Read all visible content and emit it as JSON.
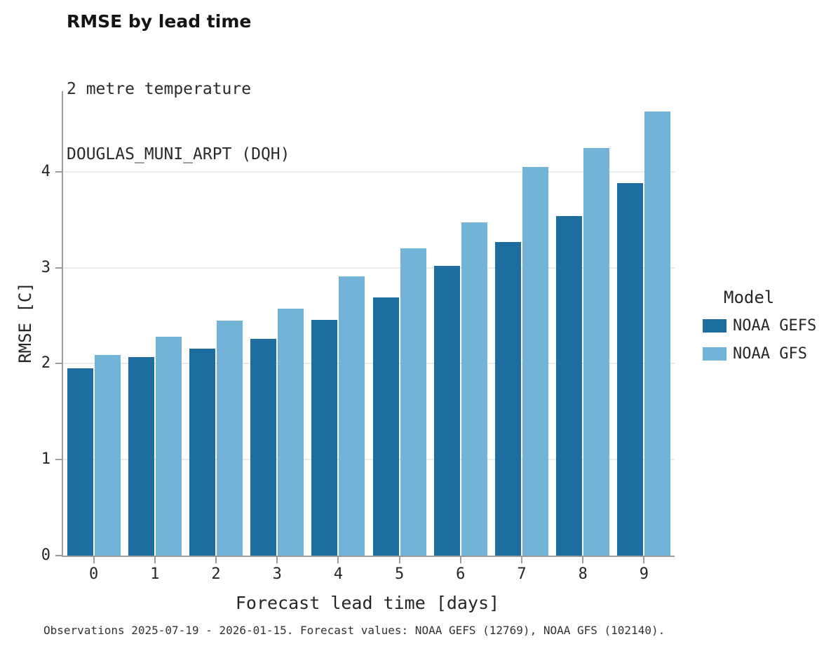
{
  "header": {
    "title": "RMSE by lead time",
    "subtitle_line1": "2 metre temperature",
    "subtitle_line2": "DOUGLAS_MUNI_ARPT (DQH)"
  },
  "chart_data": {
    "type": "bar",
    "title": "RMSE by lead time",
    "subtitle": [
      "2 metre temperature",
      "DOUGLAS_MUNI_ARPT (DQH)"
    ],
    "categories": [
      0,
      1,
      2,
      3,
      4,
      5,
      6,
      7,
      8,
      9
    ],
    "series": [
      {
        "name": "NOAA GEFS",
        "color": "#1d6e9e",
        "values": [
          1.95,
          2.07,
          2.16,
          2.26,
          2.46,
          2.69,
          3.02,
          3.27,
          3.54,
          3.88
        ]
      },
      {
        "name": "NOAA GFS",
        "color": "#74b3d8",
        "values": [
          2.09,
          2.28,
          2.45,
          2.57,
          2.91,
          3.2,
          3.47,
          4.05,
          4.25,
          4.63
        ]
      }
    ],
    "xlabel": "Forecast lead time [days]",
    "ylabel": "RMSE [C]",
    "ylim": [
      0,
      4.84
    ],
    "yticks": [
      0,
      1,
      2,
      3,
      4
    ],
    "grid": true,
    "legend": {
      "title": "Model",
      "position": "right"
    }
  },
  "footer": {
    "caption": "Observations 2025-07-19 - 2026-01-15. Forecast values: NOAA GEFS (12769), NOAA GFS (102140)."
  }
}
